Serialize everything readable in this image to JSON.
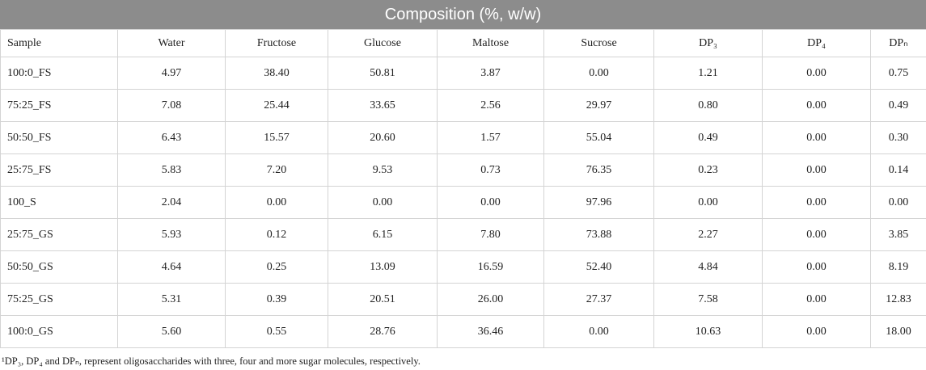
{
  "title": "Composition (%, w/w)",
  "table": {
    "header": [
      "Sample",
      "Water",
      "Fructose",
      "Glucose",
      "Maltose",
      "Sucrose",
      "DP₃",
      "DP₄",
      "DPₙ"
    ],
    "rows": [
      [
        "100:0_FS",
        "4.97",
        "38.40",
        "50.81",
        "3.87",
        "0.00",
        "1.21",
        "0.00",
        "0.75"
      ],
      [
        "75:25_FS",
        "7.08",
        "25.44",
        "33.65",
        "2.56",
        "29.97",
        "0.80",
        "0.00",
        "0.49"
      ],
      [
        "50:50_FS",
        "6.43",
        "15.57",
        "20.60",
        "1.57",
        "55.04",
        "0.49",
        "0.00",
        "0.30"
      ],
      [
        "25:75_FS",
        "5.83",
        "7.20",
        "9.53",
        "0.73",
        "76.35",
        "0.23",
        "0.00",
        "0.14"
      ],
      [
        "100_S",
        "2.04",
        "0.00",
        "0.00",
        "0.00",
        "97.96",
        "0.00",
        "0.00",
        "0.00"
      ],
      [
        "25:75_GS",
        "5.93",
        "0.12",
        "6.15",
        "7.80",
        "73.88",
        "2.27",
        "0.00",
        "3.85"
      ],
      [
        "50:50_GS",
        "4.64",
        "0.25",
        "13.09",
        "16.59",
        "52.40",
        "4.84",
        "0.00",
        "8.19"
      ],
      [
        "75:25_GS",
        "5.31",
        "0.39",
        "20.51",
        "26.00",
        "27.37",
        "7.58",
        "0.00",
        "12.83"
      ],
      [
        "100:0_GS",
        "5.60",
        "0.55",
        "28.76",
        "36.46",
        "0.00",
        "10.63",
        "0.00",
        "18.00"
      ]
    ]
  },
  "footnote": "¹DP₃, DP₄ and DPₙ, represent oligosaccharides with three, four and more sugar molecules, respectively."
}
